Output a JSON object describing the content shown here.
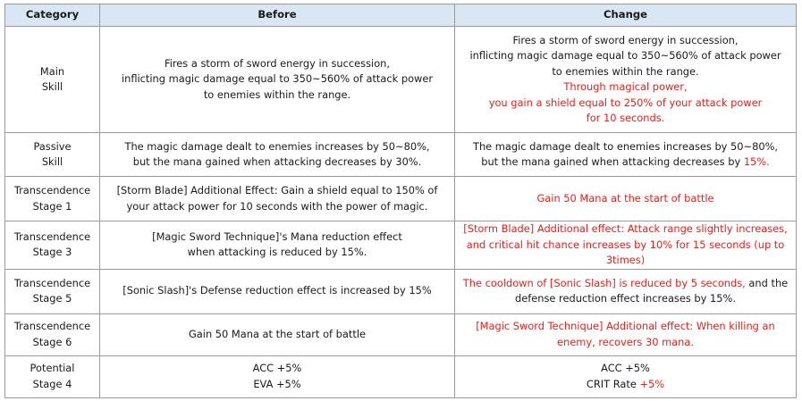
{
  "headers": {
    "category": "Category",
    "before": "Before",
    "change": "Change"
  },
  "accent_red": "#e8201a",
  "header_bg": "#d9e7f5",
  "rows": [
    {
      "category": [
        "Main",
        "Skill"
      ],
      "before": [
        "Fires a storm of sword energy in succession,",
        "inflicting magic damage equal to 350~560% of attack power",
        "to enemies within the range."
      ],
      "change_black": [
        "Fires a storm of sword energy in succession,",
        "inflicting magic damage equal to 350~560% of attack power",
        "to enemies within the range."
      ],
      "change_red": [
        "Through magical power,",
        "you gain a shield equal to 250% of your attack power",
        "for 10 seconds."
      ]
    },
    {
      "category": [
        "Passive",
        "Skill"
      ],
      "before": [
        "The magic damage dealt to enemies increases by 50~80%,",
        "but the mana gained when attacking decreases by 30%."
      ],
      "change_line1": "The magic damage dealt to enemies increases by 50~80%,",
      "change_line2_black": "but the mana gained when attacking decreases by ",
      "change_line2_red": "15%."
    },
    {
      "category": [
        "Transcendence",
        "Stage 1"
      ],
      "before": [
        "[Storm Blade] Additional Effect: Gain a shield equal to 150% of",
        "your attack power for 10 seconds with the power of magic."
      ],
      "change_red": [
        "Gain 50 Mana at the start of battle"
      ]
    },
    {
      "category": [
        "Transcendence",
        "Stage 3"
      ],
      "before": [
        "[Magic Sword Technique]'s Mana reduction effect",
        "when attacking is reduced by 15%."
      ],
      "change_red": [
        "[Storm Blade] Additional effect: Attack range slightly increases,",
        "and critical hit chance increases by 10% for 15 seconds (up to",
        "3times)"
      ]
    },
    {
      "category": [
        "Transcendence",
        "Stage 5"
      ],
      "before": [
        "[Sonic Slash]'s Defense reduction effect is increased by 15%"
      ],
      "change_line1_red": "The cooldown of [Sonic Slash] is reduced by 5 seconds,",
      "change_line1_black": " and the",
      "change_line2": "defense reduction effect increases by 15%."
    },
    {
      "category": [
        "Transcendence",
        "Stage 6"
      ],
      "before": [
        "Gain 50 Mana at the start of battle"
      ],
      "change_red": [
        "[Magic Sword Technique] Additional effect: When killing an",
        "enemy, recovers 30 mana."
      ]
    },
    {
      "category": [
        "Potential",
        "Stage 4"
      ],
      "before": [
        "ACC +5%",
        "EVA +5%"
      ],
      "change_line1": "ACC +5%",
      "change_line2_black": "CRIT Rate ",
      "change_line2_red": "+5%"
    }
  ]
}
